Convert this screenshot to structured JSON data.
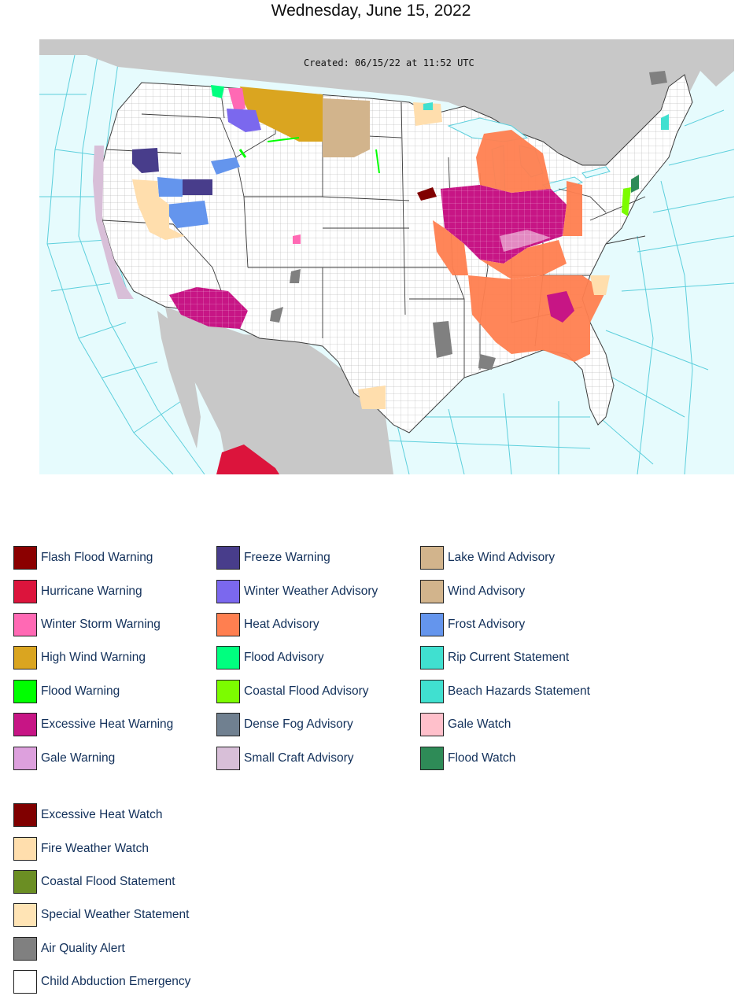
{
  "page": {
    "title": "Wednesday, June 15, 2022"
  },
  "map": {
    "created_label": "Created: 06/15/22 at 11:52 UTC",
    "colors": {
      "ocean": "#e6fbfd",
      "foreign_land": "#c8c8c8",
      "us_land": "#ffffff",
      "marine_zone_lines": "#5ccfdc",
      "county_lines": "#9a9a9a"
    }
  },
  "legend": {
    "columns": [
      [
        {
          "label": "Flash Flood Warning",
          "color": "#8b0000"
        },
        {
          "label": "Hurricane Warning",
          "color": "#dc143c"
        },
        {
          "label": "Winter Storm Warning",
          "color": "#ff69b4"
        },
        {
          "label": "High Wind Warning",
          "color": "#daa520"
        },
        {
          "label": "Flood Warning",
          "color": "#00ff00"
        },
        {
          "label": "Excessive Heat Warning",
          "color": "#c71585"
        },
        {
          "label": "Gale Warning",
          "color": "#dda0dd"
        }
      ],
      [
        {
          "label": "Freeze Warning",
          "color": "#483d8b"
        },
        {
          "label": "Winter Weather Advisory",
          "color": "#7b68ee"
        },
        {
          "label": "Heat Advisory",
          "color": "#ff7f50"
        },
        {
          "label": "Flood Advisory",
          "color": "#00ff7f"
        },
        {
          "label": "Coastal Flood Advisory",
          "color": "#7cfc00"
        },
        {
          "label": "Dense Fog Advisory",
          "color": "#708090"
        },
        {
          "label": "Small Craft Advisory",
          "color": "#d8bfd8"
        }
      ],
      [
        {
          "label": "Lake Wind Advisory",
          "color": "#d2b48c"
        },
        {
          "label": "Wind Advisory",
          "color": "#d2b48c"
        },
        {
          "label": "Frost Advisory",
          "color": "#6495ed"
        },
        {
          "label": "Rip Current Statement",
          "color": "#40e0d0"
        },
        {
          "label": "Beach Hazards Statement",
          "color": "#40e0d0"
        },
        {
          "label": "Gale Watch",
          "color": "#ffc0cb"
        },
        {
          "label": "Flood Watch",
          "color": "#2e8b57"
        }
      ],
      [
        {
          "label": "Excessive Heat Watch",
          "color": "#800000"
        },
        {
          "label": "Fire Weather Watch",
          "color": "#ffdead"
        },
        {
          "label": "Coastal Flood Statement",
          "color": "#6b8e23"
        },
        {
          "label": "Special Weather Statement",
          "color": "#ffe4b5"
        },
        {
          "label": "Air Quality Alert",
          "color": "#808080"
        },
        {
          "label": "Child Abduction Emergency",
          "color": "#ffffff"
        }
      ]
    ]
  }
}
